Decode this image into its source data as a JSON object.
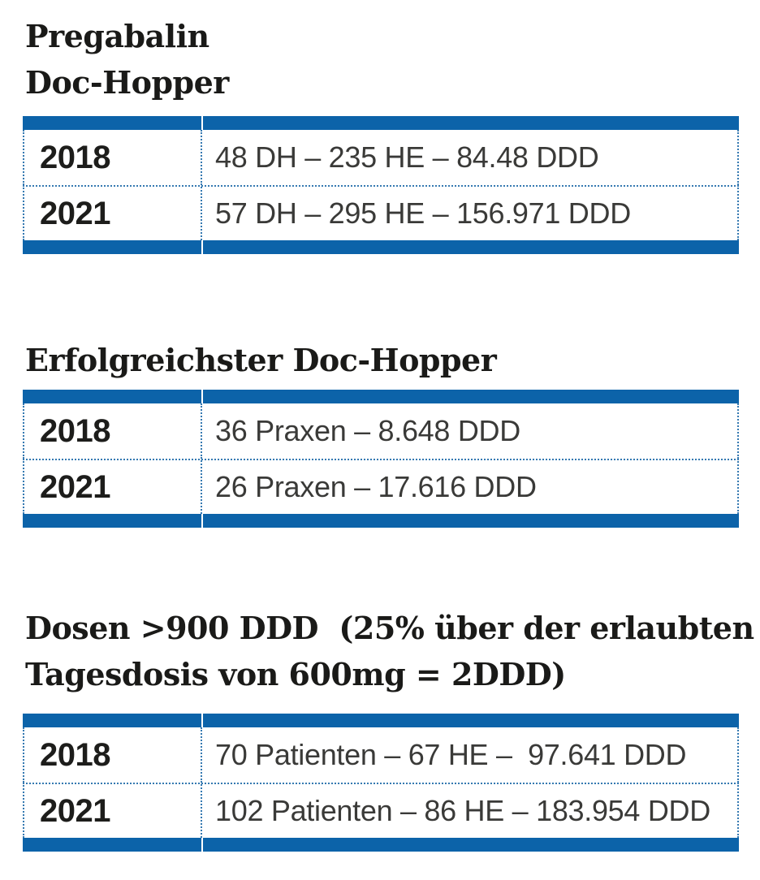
{
  "colors": {
    "bar_blue": "#0c63a9",
    "dotted_border_blue": "#3579b1",
    "heading_text": "#1a1a18",
    "year_text": "#1d1d1b",
    "value_text": "#3a3a38",
    "background": "#ffffff"
  },
  "sections": [
    {
      "heading_lines": [
        "Pregabalin",
        "Doc-Hopper"
      ],
      "rows": [
        {
          "year": "2018",
          "value": "48 DH – 235 HE – 84.48 DDD"
        },
        {
          "year": "2021",
          "value": "57 DH – 295 HE – 156.971 DDD"
        }
      ]
    },
    {
      "heading_lines": [
        "Erfolgreichster Doc-Hopper"
      ],
      "rows": [
        {
          "year": "2018",
          "value": "36 Praxen – 8.648 DDD"
        },
        {
          "year": "2021",
          "value": "26 Praxen – 17.616 DDD"
        }
      ]
    },
    {
      "heading_lines": [
        "Dosen >900 DDD  (25% über der erlaubten",
        "Tagesdosis von 600mg = 2DDD)"
      ],
      "rows": [
        {
          "year": "2018",
          "value": "70 Patienten – 67 HE –  97.641 DDD"
        },
        {
          "year": "2021",
          "value": "102 Patienten – 86 HE – 183.954 DDD"
        }
      ]
    }
  ]
}
